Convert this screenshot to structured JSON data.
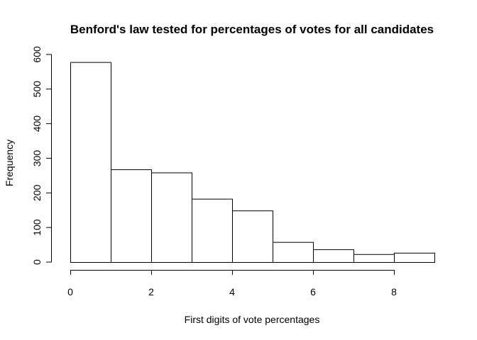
{
  "chart_data": {
    "type": "bar",
    "title": "Benford's law tested for percentages of votes for all candidates",
    "xlabel": "First digits of vote percentages",
    "ylabel": "Frequency",
    "bins": [
      [
        0,
        1
      ],
      [
        1,
        2
      ],
      [
        2,
        3
      ],
      [
        3,
        4
      ],
      [
        4,
        5
      ],
      [
        5,
        6
      ],
      [
        6,
        7
      ],
      [
        7,
        8
      ],
      [
        8,
        9
      ]
    ],
    "values": [
      578,
      268,
      259,
      183,
      149,
      58,
      37,
      23,
      27
    ],
    "xlim": [
      0,
      9
    ],
    "ylim": [
      0,
      600
    ],
    "xticks": [
      0,
      2,
      4,
      6,
      8
    ],
    "yticks": [
      0,
      100,
      200,
      300,
      400,
      500,
      600
    ],
    "bar_fill": "#ffffff",
    "bar_stroke": "#000000",
    "grid": false,
    "legend": "none"
  }
}
